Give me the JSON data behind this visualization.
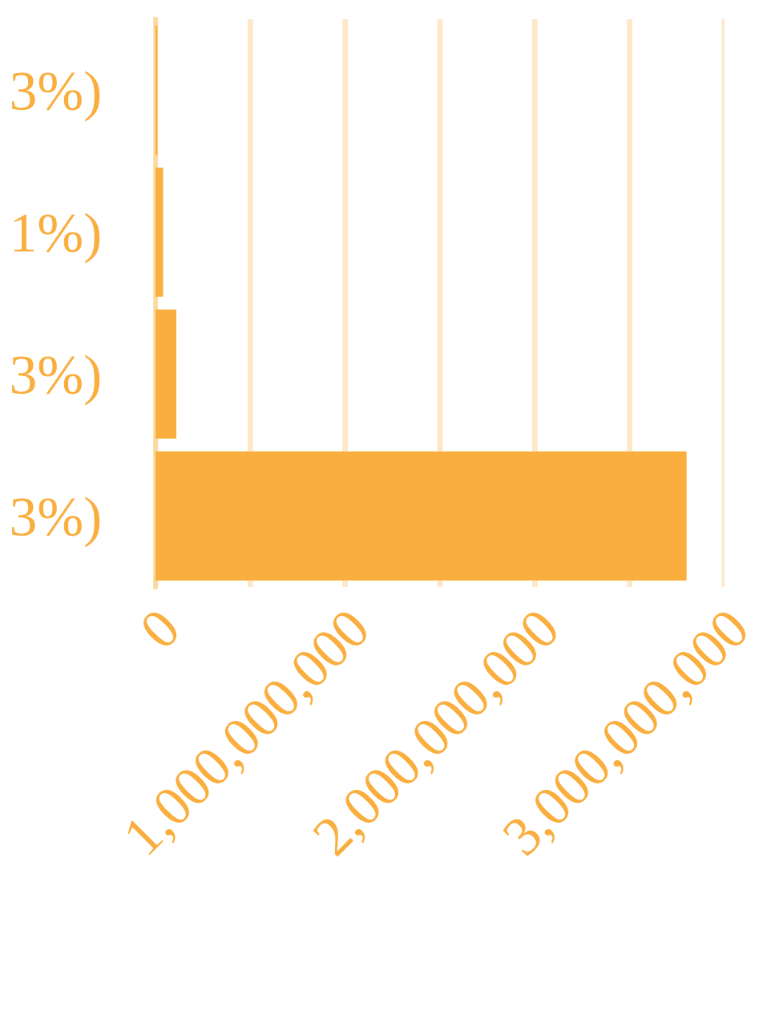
{
  "chart_data": {
    "type": "bar",
    "orientation": "horizontal",
    "categories": [
      "3%)",
      "1%)",
      "3%)",
      "3%)"
    ],
    "values": [
      10000000,
      40000000,
      110000000,
      2800000000
    ],
    "color": "#f9ae3e",
    "xlim": [
      0,
      3000000000
    ],
    "xticks": [
      {
        "value": 0,
        "label": "0"
      },
      {
        "value": 500000000,
        "label": null
      },
      {
        "value": 1000000000,
        "label": "1,000,000,000"
      },
      {
        "value": 1500000000,
        "label": null
      },
      {
        "value": 2000000000,
        "label": "2,000,000,000"
      },
      {
        "value": 2500000000,
        "label": null
      },
      {
        "value": 3000000000,
        "label": "3,000,000,000"
      }
    ],
    "grid": "x",
    "legend": false
  }
}
